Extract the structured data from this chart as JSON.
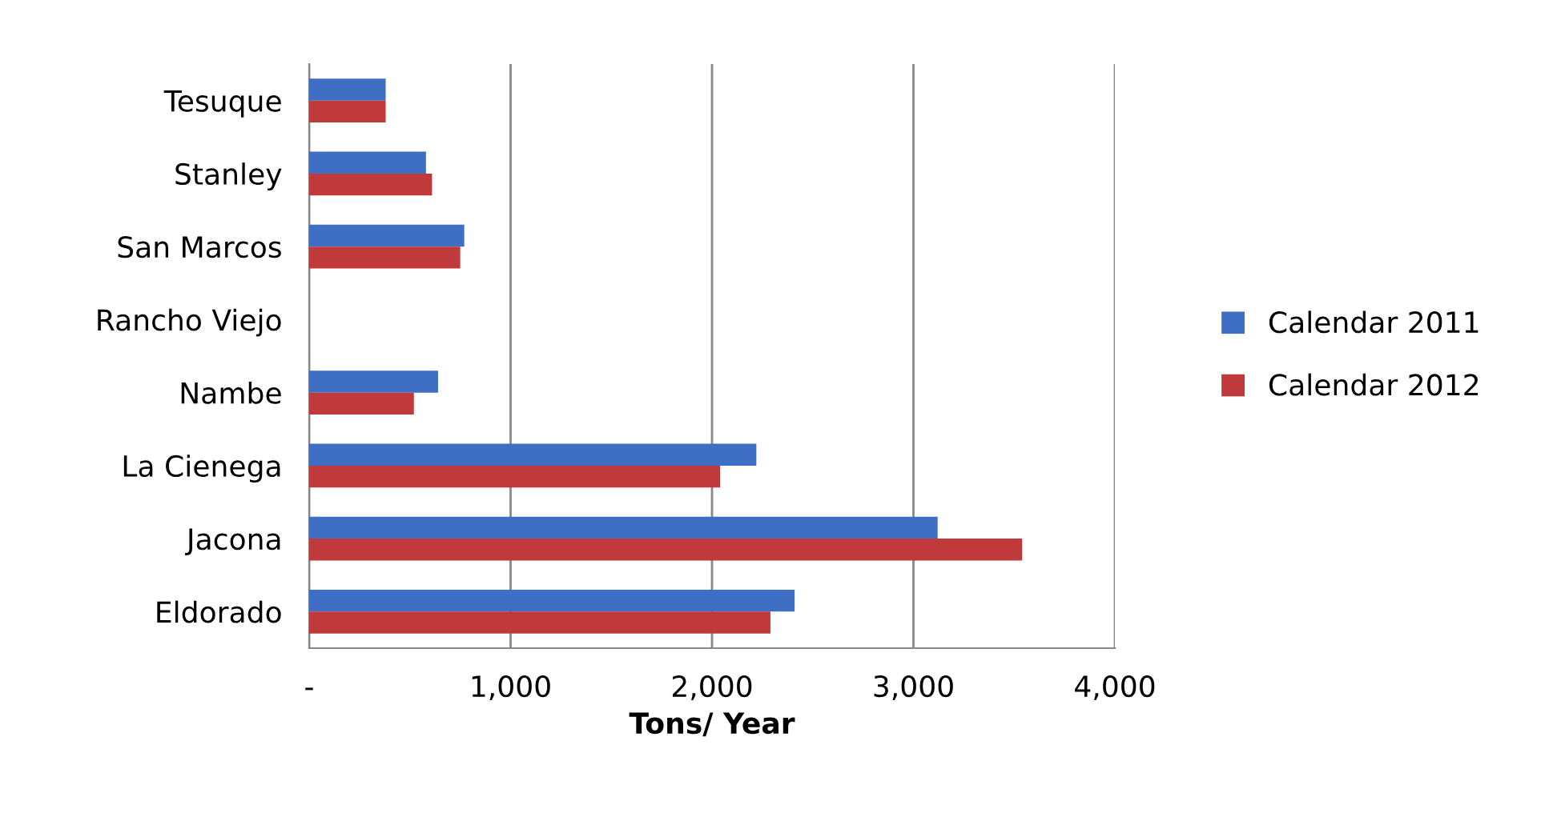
{
  "chart_data": {
    "type": "bar",
    "orientation": "horizontal",
    "xlabel": "Tons/ Year",
    "categories": [
      "Tesuque",
      "Stanley",
      "San Marcos",
      "Rancho Viejo",
      "Nambe",
      "La Cienega",
      "Jacona",
      "Eldorado"
    ],
    "series": [
      {
        "name": "Calendar 2011",
        "color": "#3f6fc4",
        "values": [
          380,
          580,
          770,
          0,
          640,
          2220,
          3120,
          2410
        ]
      },
      {
        "name": "Calendar 2012",
        "color": "#c0393b",
        "values": [
          380,
          610,
          750,
          0,
          520,
          2040,
          3540,
          2290
        ]
      }
    ],
    "xlim": [
      0,
      4000
    ],
    "xticks": [
      {
        "value": 0,
        "label": "-"
      },
      {
        "value": 1000,
        "label": "1,000"
      },
      {
        "value": 2000,
        "label": "2,000"
      },
      {
        "value": 3000,
        "label": "3,000"
      },
      {
        "value": 4000,
        "label": "4,000"
      }
    ],
    "grid": "x",
    "legend": "right"
  }
}
